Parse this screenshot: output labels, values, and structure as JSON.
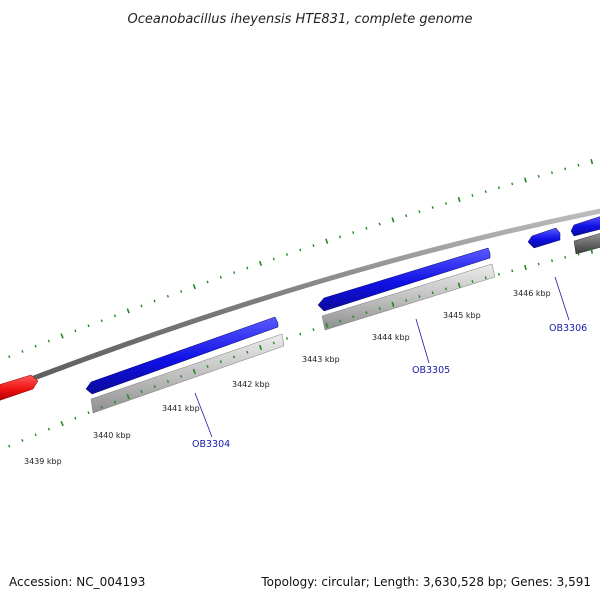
{
  "title": "Oceanobacillus iheyensis HTE831, complete genome",
  "footer": {
    "accession": "Accession: NC_004193",
    "summary": "Topology: circular; Length: 3,630,528 bp; Genes: 3,591"
  },
  "colors": {
    "forward_gene": "#1010e6",
    "forward_gene_light": "#4a4aff",
    "cds": "#b4b4b4",
    "cds_light": "#dcdcdc",
    "other_feature": "#ee1010",
    "dark_cds": "#666666",
    "backbone": "#888888",
    "tick": "#1e8a1e",
    "gene_label": "#1a1aa6"
  },
  "ruler": {
    "unit": "kbp",
    "ticks_kbp": [
      3439,
      3440,
      3441,
      3442,
      3443,
      3444,
      3445,
      3446
    ],
    "tick_labels": [
      "3439 kbp",
      "3440 kbp",
      "3441 kbp",
      "3442 kbp",
      "3443 kbp",
      "3444 kbp",
      "3445 kbp",
      "3446 kbp"
    ]
  },
  "genes": [
    {
      "id": "OB3304",
      "label": "OB3304"
    },
    {
      "id": "OB3305",
      "label": "OB3305"
    },
    {
      "id": "OB3306",
      "label": "OB3306"
    }
  ]
}
